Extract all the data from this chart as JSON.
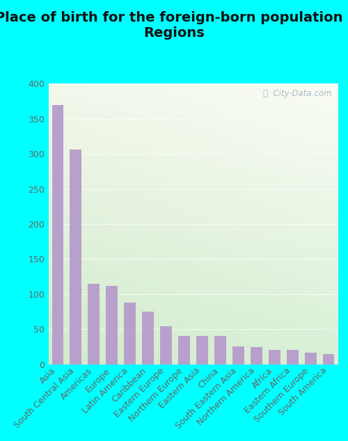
{
  "title": "Place of birth for the foreign-born population -\nRegions",
  "categories": [
    "Asia",
    "South Central Asia",
    "Americas",
    "Europe",
    "Latin America",
    "Caribbean",
    "Eastern Europe",
    "Northern Europe",
    "Eastern Asia",
    "China",
    "South Eastern Asia",
    "Northern America",
    "Africa",
    "Eastern Africa",
    "Southern Europe",
    "South America"
  ],
  "values": [
    370,
    306,
    115,
    112,
    88,
    75,
    54,
    40,
    40,
    40,
    25,
    24,
    20,
    20,
    16,
    14
  ],
  "bar_color": "#b8a0cc",
  "ylim": [
    0,
    400
  ],
  "yticks": [
    0,
    50,
    100,
    150,
    200,
    250,
    300,
    350,
    400
  ],
  "title_fontsize": 14,
  "tick_fontsize": 9,
  "fig_bg": "#00ffff",
  "watermark_text": "ⓘ  City-Data.com"
}
